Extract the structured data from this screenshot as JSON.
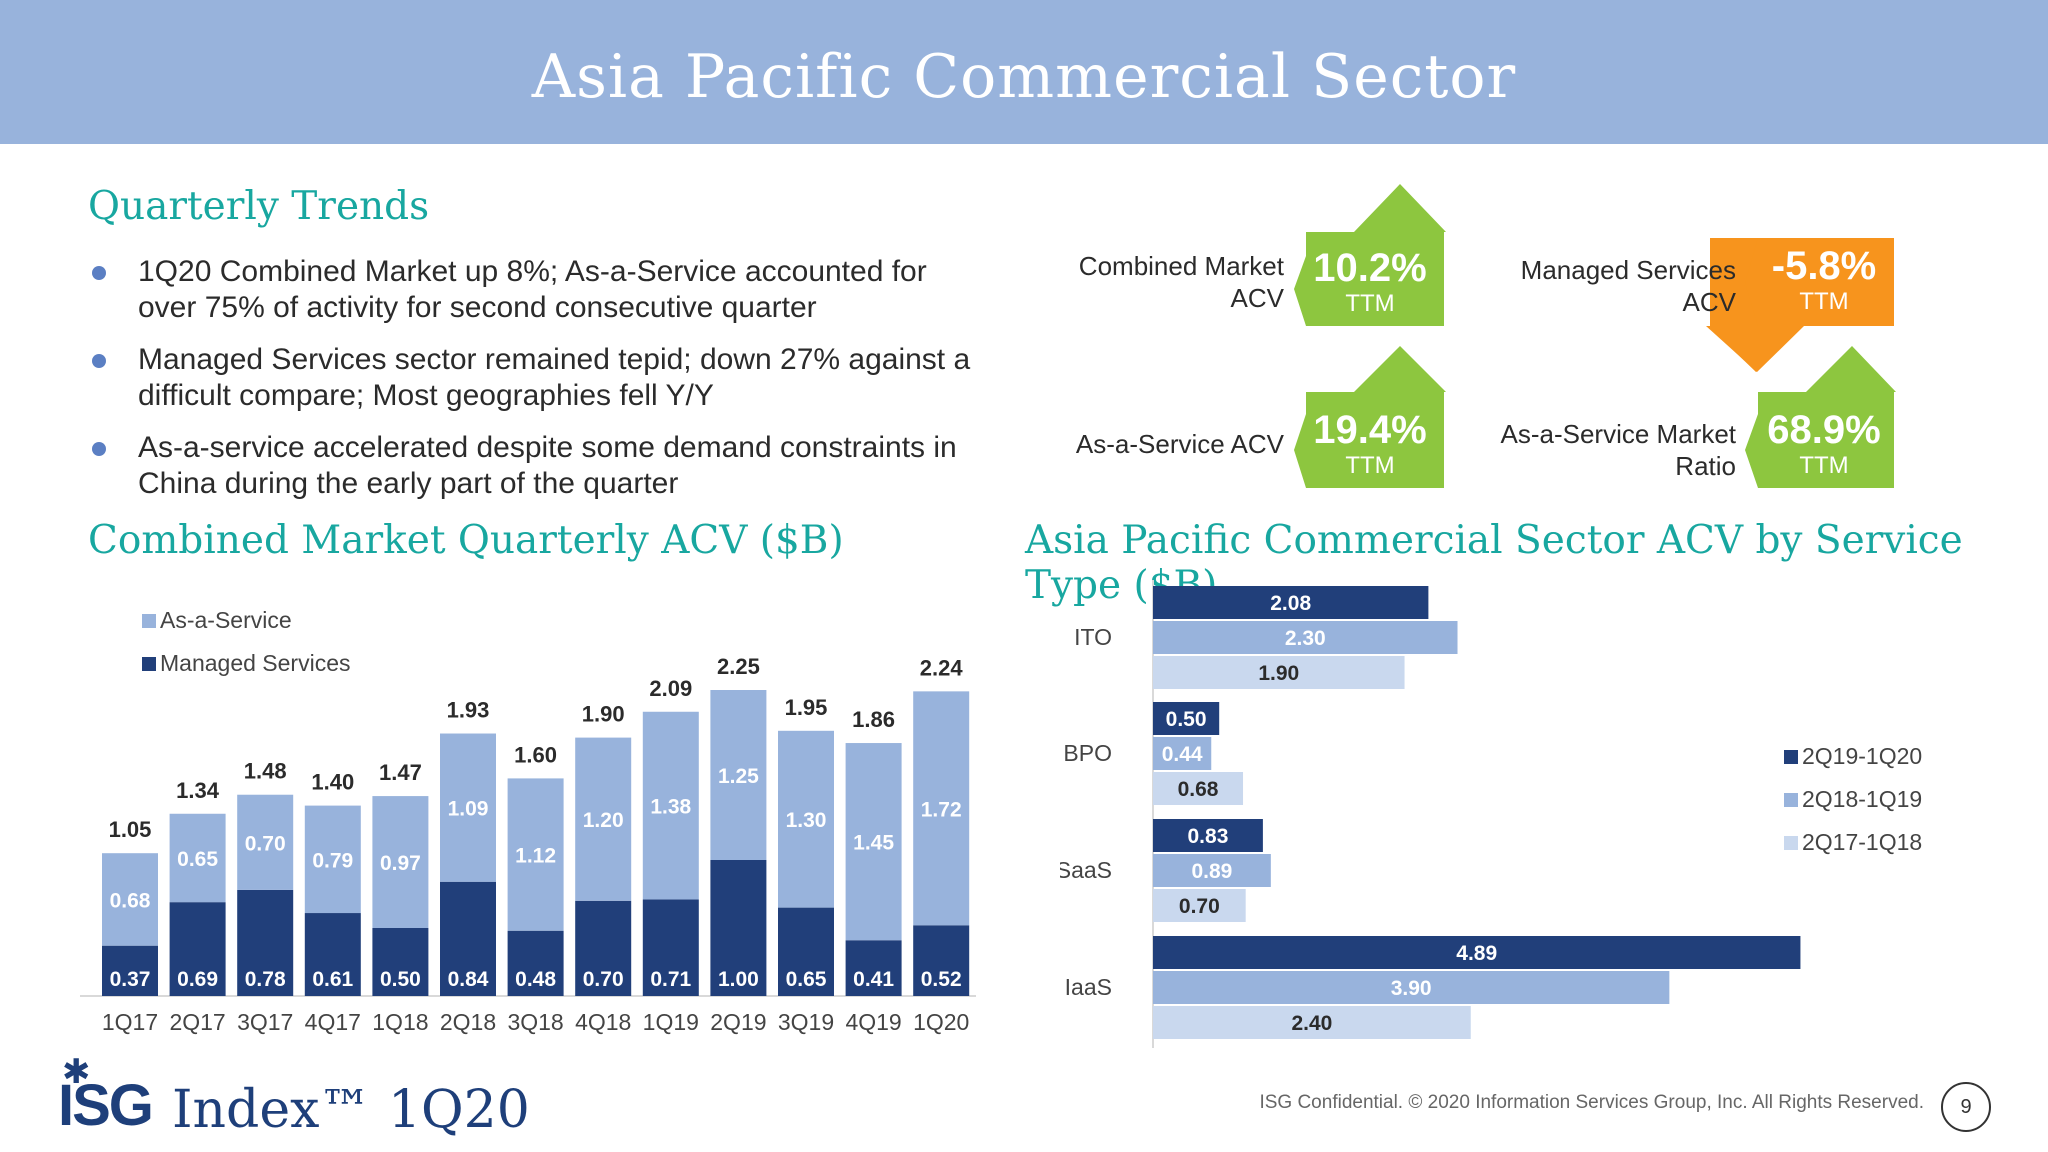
{
  "header": {
    "title": "Asia Pacific Commercial Sector"
  },
  "trends": {
    "title": "Quarterly Trends",
    "bullets": [
      "1Q20 Combined Market up 8%; As-a-Service accounted for over 75% of activity for second consecutive quarter",
      "Managed Services sector remained tepid; down 27% against a difficult compare; Most geographies fell Y/Y",
      "As-a-service accelerated despite some demand constraints in China during the early part of the quarter"
    ]
  },
  "kpis": [
    {
      "label": "Combined Market ACV",
      "value": "10.2%",
      "sub": "TTM",
      "direction": "up",
      "color": "#8dc63f"
    },
    {
      "label": "Managed Services ACV",
      "value": "-5.8%",
      "sub": "TTM",
      "direction": "down",
      "color": "#f7941d"
    },
    {
      "label": "As-a-Service ACV",
      "value": "19.4%",
      "sub": "TTM",
      "direction": "up",
      "color": "#8dc63f"
    },
    {
      "label": "As-a-Service Market Ratio",
      "value": "68.9%",
      "sub": "TTM",
      "direction": "up",
      "color": "#8dc63f"
    }
  ],
  "left_chart_title": "Combined Market Quarterly ACV ($B)",
  "right_chart_title": "Asia Pacific Commercial Sector ACV by Service Type ($B)",
  "chart_data": [
    {
      "type": "bar",
      "stacked": true,
      "categories": [
        "1Q17",
        "2Q17",
        "3Q17",
        "4Q17",
        "1Q18",
        "2Q18",
        "3Q18",
        "4Q18",
        "1Q19",
        "2Q19",
        "3Q19",
        "4Q19",
        "1Q20"
      ],
      "series": [
        {
          "name": "Managed Services",
          "values": [
            0.37,
            0.69,
            0.78,
            0.61,
            0.5,
            0.84,
            0.48,
            0.7,
            0.71,
            1.0,
            0.65,
            0.41,
            0.52
          ],
          "color": "#213f7a"
        },
        {
          "name": "As-a-Service",
          "values": [
            0.68,
            0.65,
            0.7,
            0.79,
            0.97,
            1.09,
            1.12,
            1.2,
            1.38,
            1.25,
            1.3,
            1.45,
            1.72
          ],
          "color": "#98b3dc"
        }
      ],
      "totals": [
        1.05,
        1.34,
        1.48,
        1.4,
        1.47,
        1.93,
        1.6,
        1.9,
        2.09,
        2.25,
        1.95,
        1.86,
        2.24
      ],
      "legend": [
        "As-a-Service",
        "Managed Services"
      ],
      "legend_position": "top-left"
    },
    {
      "type": "bar",
      "orientation": "horizontal",
      "categories": [
        "ITO",
        "BPO",
        "SaaS",
        "IaaS"
      ],
      "series": [
        {
          "name": "2Q19-1Q20",
          "values": [
            2.08,
            0.5,
            0.83,
            4.89
          ],
          "color": "#213f7a"
        },
        {
          "name": "2Q18-1Q19",
          "values": [
            2.3,
            0.44,
            0.89,
            3.9
          ],
          "color": "#98b3dc"
        },
        {
          "name": "2Q17-1Q18",
          "values": [
            1.9,
            0.68,
            0.7,
            2.4
          ],
          "color": "#c9d8ee"
        }
      ],
      "legend_position": "right"
    }
  ],
  "footer": {
    "confidential": "ISG Confidential. © 2020 Information Services Group, Inc.  All Rights Reserved.",
    "page": "9",
    "logo_mark": "ISG",
    "logo_text": "Index™ 1Q20"
  }
}
